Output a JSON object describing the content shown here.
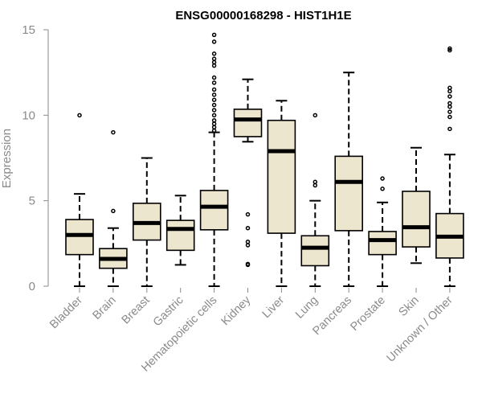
{
  "chart_data": {
    "type": "box",
    "title": "ENSG00000168298 - HIST1H1E",
    "xlabel": "",
    "ylabel": "Expression",
    "ylim": [
      0,
      15
    ],
    "yticks": [
      "0",
      "5",
      "10",
      "15"
    ],
    "grid": false,
    "legend": "none",
    "box_fill": "#ede6cf",
    "box_stroke": "#000000",
    "median_color": "#000000",
    "categories": [
      "Bladder",
      "Brain",
      "Breast",
      "Gastric",
      "Hematopoietic cells",
      "Kidney",
      "Liver",
      "Lung",
      "Pancreas",
      "Prostate",
      "Skin",
      "Unknown / Other"
    ],
    "boxes": [
      {
        "min": 0,
        "q1": 1.85,
        "median": 3.0,
        "q3": 3.9,
        "max": 5.4,
        "outliers": [
          10.0
        ]
      },
      {
        "min": 0,
        "q1": 1.05,
        "median": 1.6,
        "q3": 2.2,
        "max": 3.4,
        "outliers": [
          4.4,
          9.0
        ]
      },
      {
        "min": 0,
        "q1": 2.7,
        "median": 3.7,
        "q3": 4.85,
        "max": 7.5,
        "outliers": []
      },
      {
        "min": 1.25,
        "q1": 2.1,
        "median": 3.35,
        "q3": 3.85,
        "max": 5.3,
        "outliers": []
      },
      {
        "min": 0,
        "q1": 3.3,
        "median": 4.65,
        "q3": 5.6,
        "max": 9.0,
        "outliers": [
          9.1,
          9.3,
          9.5,
          9.7,
          10.0,
          10.3,
          10.6,
          10.9,
          11.2,
          11.5,
          11.9,
          12.2,
          12.9,
          13.1,
          13.3,
          13.6,
          14.3,
          14.7
        ]
      },
      {
        "min": 8.45,
        "q1": 8.75,
        "median": 9.75,
        "q3": 10.35,
        "max": 12.1,
        "outliers": [
          1.25,
          1.3,
          2.4,
          2.6,
          3.4,
          4.2
        ]
      },
      {
        "min": 0,
        "q1": 3.1,
        "median": 7.9,
        "q3": 9.7,
        "max": 10.85,
        "outliers": []
      },
      {
        "min": 0,
        "q1": 1.2,
        "median": 2.25,
        "q3": 2.95,
        "max": 5.0,
        "outliers": [
          5.9,
          6.1,
          10.0
        ]
      },
      {
        "min": 0,
        "q1": 3.25,
        "median": 6.1,
        "q3": 7.6,
        "max": 12.5,
        "outliers": []
      },
      {
        "min": 0,
        "q1": 1.85,
        "median": 2.7,
        "q3": 3.2,
        "max": 4.9,
        "outliers": [
          5.7,
          6.3
        ]
      },
      {
        "min": 1.35,
        "q1": 2.3,
        "median": 3.45,
        "q3": 5.55,
        "max": 8.1,
        "outliers": []
      },
      {
        "min": 0,
        "q1": 1.65,
        "median": 2.9,
        "q3": 4.25,
        "max": 7.7,
        "outliers": [
          9.2,
          9.9,
          10.2,
          10.5,
          10.7,
          11.1,
          11.4,
          11.6,
          13.8,
          13.9
        ]
      }
    ]
  }
}
